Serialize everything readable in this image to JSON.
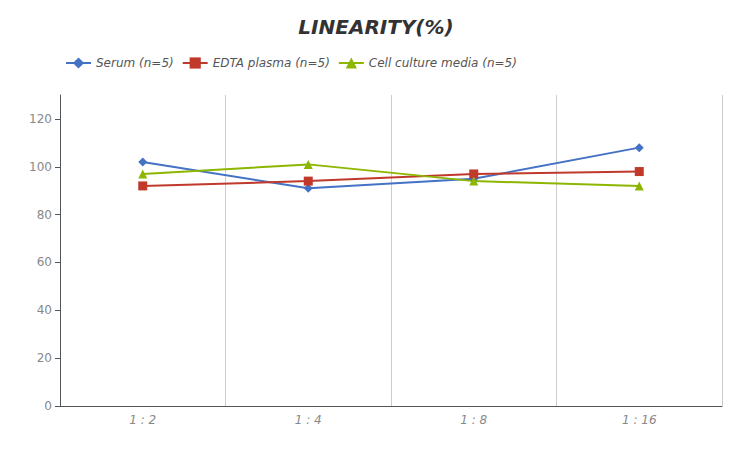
{
  "chart_data": {
    "type": "line",
    "title": "LINEARITY(%)",
    "categories": [
      "1 : 2",
      "1 : 4",
      "1 : 8",
      "1 : 16"
    ],
    "series": [
      {
        "name": "Serum (n=5)",
        "color": "#4472C4",
        "marker": "diamond",
        "values": [
          102,
          91,
          95,
          108
        ]
      },
      {
        "name": "EDTA plasma (n=5)",
        "color": "#C0392B",
        "marker": "square",
        "values": [
          92,
          94,
          97,
          98
        ]
      },
      {
        "name": "Cell culture media (n=5)",
        "color": "#8DB600",
        "marker": "triangle",
        "values": [
          97,
          101,
          94,
          92
        ]
      }
    ],
    "ylim": [
      0,
      130
    ],
    "yticks": [
      0,
      20,
      40,
      60,
      80,
      100,
      120
    ],
    "grid": true,
    "legend": "upper left"
  }
}
